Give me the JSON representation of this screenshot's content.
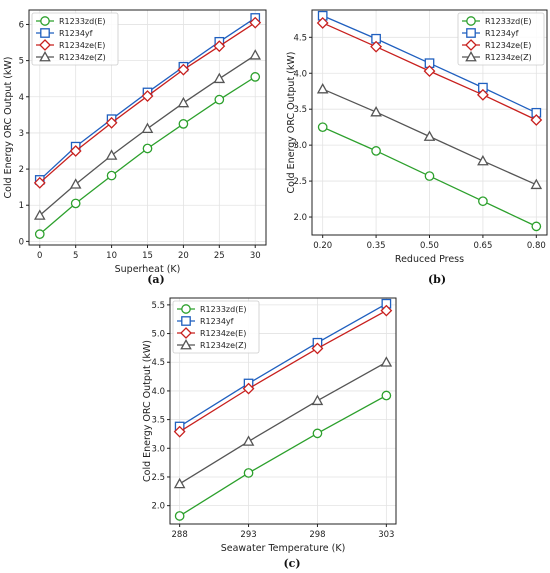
{
  "colors": {
    "R1233zd(E)": "#2ca02c",
    "R1234yf": "#1f5fbf",
    "R1234ze(E)": "#c8201e",
    "R1234ze(Z)": "#555555"
  },
  "markers": {
    "R1233zd(E)": "circle",
    "R1234yf": "square",
    "R1234ze(E)": "diamond",
    "R1234ze(Z)": "triangle"
  },
  "chart_data": [
    {
      "id": "a",
      "type": "line",
      "caption": "(a)",
      "xlabel": "Superheat (K)",
      "ylabel": "Cold Energy ORC Output (kW)",
      "x": [
        0,
        5,
        10,
        15,
        20,
        25,
        30
      ],
      "x_tick_labels": [
        "0",
        "5",
        "10",
        "15",
        "20",
        "25",
        "30"
      ],
      "xlim": [
        -1.5,
        31.5
      ],
      "ylim": [
        -0.1,
        6.4
      ],
      "y_ticks": [
        0,
        1,
        2,
        3,
        4,
        5,
        6
      ],
      "y_tick_labels": [
        "0",
        "1",
        "2",
        "3",
        "4",
        "5",
        "6"
      ],
      "grid": true,
      "legend": "top-left",
      "series": [
        {
          "name": "R1233zd(E)",
          "values": [
            0.2,
            1.05,
            1.82,
            2.57,
            3.25,
            3.92,
            4.55
          ]
        },
        {
          "name": "R1234yf",
          "values": [
            1.7,
            2.62,
            3.38,
            4.12,
            4.83,
            5.52,
            6.18
          ]
        },
        {
          "name": "R1234ze(E)",
          "values": [
            1.62,
            2.5,
            3.28,
            4.02,
            4.75,
            5.4,
            6.05
          ]
        },
        {
          "name": "R1234ze(Z)",
          "values": [
            0.72,
            1.58,
            2.38,
            3.12,
            3.83,
            4.5,
            5.15
          ]
        }
      ]
    },
    {
      "id": "b",
      "type": "line",
      "caption": "(b)",
      "xlabel": "Reduced Press",
      "ylabel": "Cold Energy ORC Output (kW)",
      "x": [
        0.2,
        0.35,
        0.5,
        0.65,
        0.8
      ],
      "x_tick_labels": [
        "0.20",
        "0.35",
        "0.50",
        "0.65",
        "0.80"
      ],
      "xlim": [
        0.17,
        0.83
      ],
      "ylim": [
        1.75,
        4.88
      ],
      "y_ticks": [
        2.0,
        2.5,
        3.0,
        3.5,
        4.0,
        4.5
      ],
      "y_tick_labels": [
        "2.0",
        "2.5",
        "3.0",
        "3.5",
        "4.0",
        "4.5"
      ],
      "grid": true,
      "legend": "top-right",
      "series": [
        {
          "name": "R1233zd(E)",
          "values": [
            3.25,
            2.92,
            2.57,
            2.22,
            1.87
          ]
        },
        {
          "name": "R1234yf",
          "values": [
            4.8,
            4.48,
            4.14,
            3.8,
            3.45
          ]
        },
        {
          "name": "R1234ze(E)",
          "values": [
            4.7,
            4.37,
            4.03,
            3.7,
            3.35
          ]
        },
        {
          "name": "R1234ze(Z)",
          "values": [
            3.78,
            3.46,
            3.12,
            2.78,
            2.45
          ]
        }
      ]
    },
    {
      "id": "c",
      "type": "line",
      "caption": "(c)",
      "xlabel": "Seawater Temperature (K)",
      "ylabel": "Cold Energy ORC Output (kW)",
      "x": [
        288,
        293,
        298,
        303
      ],
      "x_tick_labels": [
        "288",
        "293",
        "298",
        "303"
      ],
      "xlim": [
        287.3,
        303.7
      ],
      "ylim": [
        1.68,
        5.62
      ],
      "y_ticks": [
        2.0,
        2.5,
        3.0,
        3.5,
        4.0,
        4.5,
        5.0,
        5.5
      ],
      "y_tick_labels": [
        "2.0",
        "2.5",
        "3.0",
        "3.5",
        "4.0",
        "4.5",
        "5.0",
        "5.5"
      ],
      "grid": true,
      "legend": "top-left",
      "series": [
        {
          "name": "R1233zd(E)",
          "values": [
            1.82,
            2.57,
            3.26,
            3.92
          ]
        },
        {
          "name": "R1234yf",
          "values": [
            3.38,
            4.13,
            4.84,
            5.52
          ]
        },
        {
          "name": "R1234ze(E)",
          "values": [
            3.29,
            4.04,
            4.74,
            5.4
          ]
        },
        {
          "name": "R1234ze(Z)",
          "values": [
            2.38,
            3.12,
            3.83,
            4.5
          ]
        }
      ]
    }
  ]
}
